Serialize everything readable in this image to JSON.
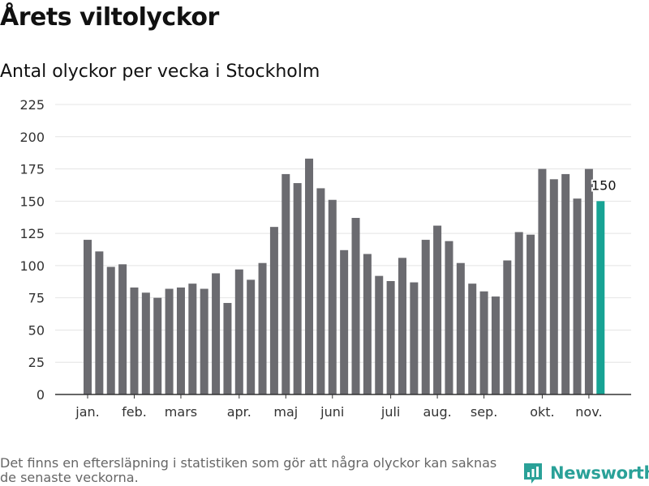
{
  "title": "Årets viltolyckor",
  "subtitle": "Antal olyckor per vecka i Stockholm",
  "footnote": "Det finns en eftersläpning i statistiken som gör att några olyckor kan saknas de senaste veckorna.",
  "logo_text": "Newsworthy",
  "colors": {
    "bar": "#6b6b70",
    "highlight": "#17a394",
    "grid": "#e4e4e4",
    "axis": "#333333",
    "logo": "#2aa198"
  },
  "chart_data": {
    "type": "bar",
    "title": "Årets viltolyckor",
    "subtitle": "Antal olyckor per vecka i Stockholm",
    "xlabel": "",
    "ylabel": "",
    "ylim": [
      0,
      225
    ],
    "yticks": [
      0,
      25,
      50,
      75,
      100,
      125,
      150,
      175,
      200,
      225
    ],
    "grid": true,
    "month_labels": [
      {
        "label": "jan.",
        "week": 1
      },
      {
        "label": "feb.",
        "week": 5
      },
      {
        "label": "mars",
        "week": 9
      },
      {
        "label": "apr.",
        "week": 14
      },
      {
        "label": "maj",
        "week": 18
      },
      {
        "label": "juni",
        "week": 22
      },
      {
        "label": "juli",
        "week": 27
      },
      {
        "label": "aug.",
        "week": 31
      },
      {
        "label": "sep.",
        "week": 35
      },
      {
        "label": "okt.",
        "week": 40
      },
      {
        "label": "nov.",
        "week": 44
      }
    ],
    "weeks": [
      1,
      2,
      3,
      4,
      5,
      6,
      7,
      8,
      9,
      10,
      11,
      12,
      13,
      14,
      15,
      16,
      17,
      18,
      19,
      20,
      21,
      22,
      23,
      24,
      25,
      26,
      27,
      28,
      29,
      30,
      31,
      32,
      33,
      34,
      35,
      36,
      37,
      38,
      39,
      40,
      41,
      42,
      43,
      44,
      45
    ],
    "values": [
      120,
      111,
      99,
      101,
      83,
      79,
      75,
      82,
      83,
      86,
      82,
      94,
      71,
      97,
      89,
      102,
      130,
      171,
      164,
      183,
      160,
      151,
      112,
      137,
      109,
      92,
      88,
      106,
      87,
      120,
      131,
      119,
      102,
      86,
      80,
      76,
      104,
      126,
      124,
      175,
      167,
      171,
      152,
      175,
      150
    ],
    "highlight_index": 44,
    "annotation": {
      "label": "150",
      "value": 150
    }
  }
}
